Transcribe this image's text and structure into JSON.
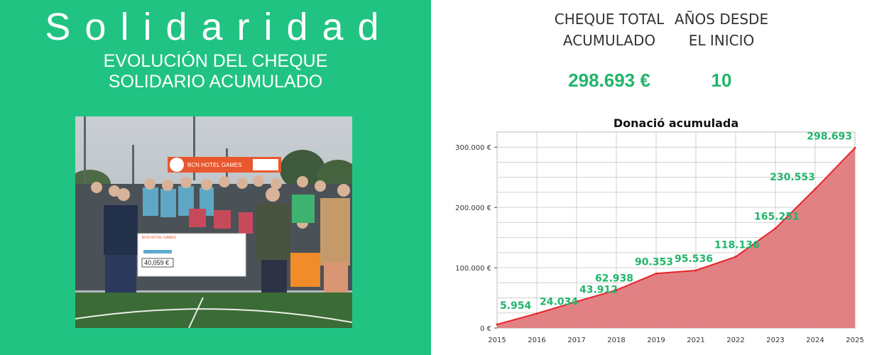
{
  "hero": {
    "title": "Solidaridad",
    "subtitle_line1": "EVOLUCIÓN DEL CHEQUE",
    "subtitle_line2": "SOLIDARIO ACUMULADO"
  },
  "photo": {
    "banner_text": "BCN HOTEL GAMES",
    "cheque_text": "BCN HOTEL GAMES",
    "cheque_amount": "40,059 €"
  },
  "stats": {
    "total": {
      "label_line1": "CHEQUE TOTAL",
      "label_line2": "ACUMULADO",
      "value": "298.693 €"
    },
    "years": {
      "label_line1": "AÑOS DESDE",
      "label_line2": "EL INICIO",
      "value": "10"
    }
  },
  "colors": {
    "green": "#21c383",
    "value_green": "#21b56a",
    "area_fill": "#e07a7d",
    "area_line": "#e8222a"
  },
  "chart_data": {
    "type": "area",
    "title": "Donació acumulada",
    "categories": [
      "2015",
      "2016",
      "2017",
      "2018",
      "2019",
      "2021",
      "2022",
      "2023",
      "2024",
      "2025"
    ],
    "values": [
      5954,
      24034,
      43912,
      62938,
      90353,
      95536,
      118136,
      165251,
      230553,
      298693
    ],
    "data_labels": [
      "5.954",
      "24.034",
      "43.912",
      "62.938",
      "90.353",
      "95.536",
      "118.136",
      "165.251",
      "230.553",
      "298.693"
    ],
    "y_ticks": [
      0,
      100000,
      200000,
      300000
    ],
    "y_tick_labels": [
      "0 €",
      "100.000 €",
      "200.000 €",
      "300.000 €"
    ],
    "ylim": [
      0,
      325000
    ],
    "grid": true,
    "xlabel": "",
    "ylabel": ""
  }
}
